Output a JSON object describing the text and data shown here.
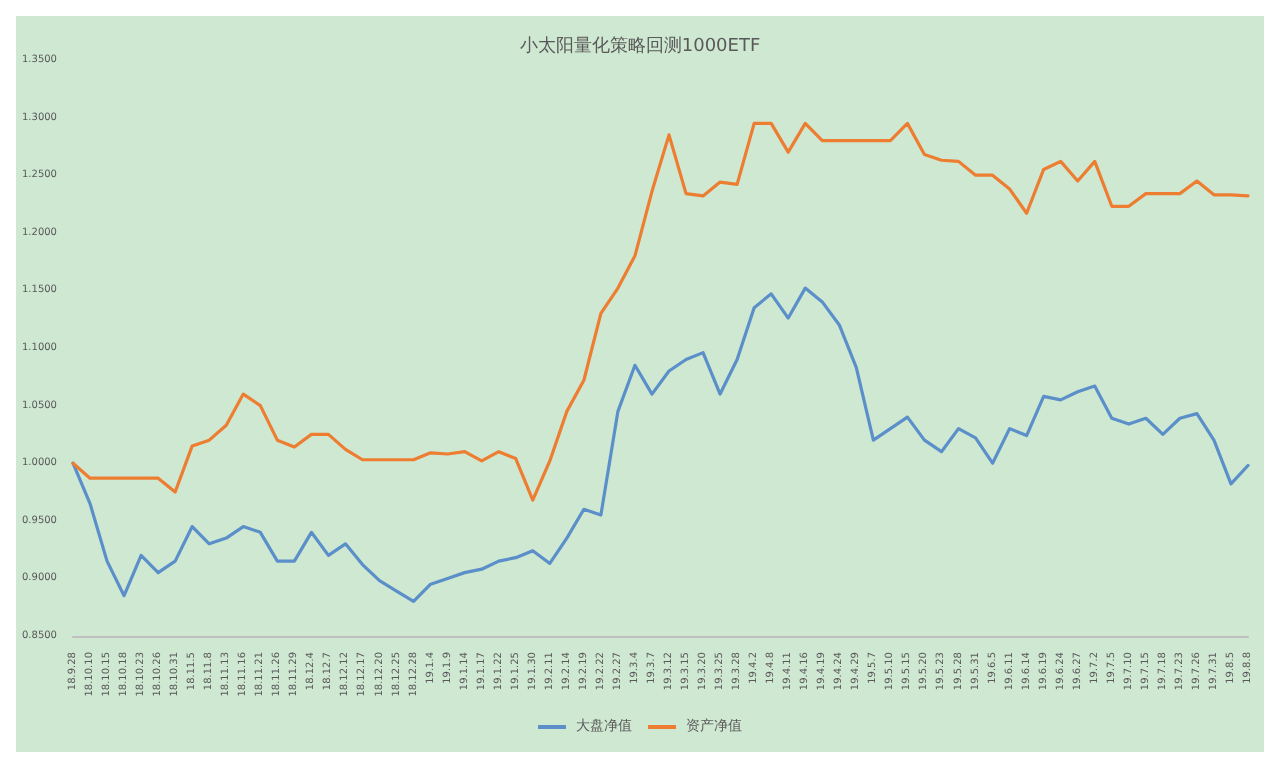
{
  "chart_data": {
    "type": "line",
    "title": "小太阳量化策略回测1000ETF",
    "categories": [
      "18.9.28",
      "18.10.10",
      "18.10.15",
      "18.10.18",
      "18.10.23",
      "18.10.26",
      "18.10.31",
      "18.11.5",
      "18.11.8",
      "18.11.13",
      "18.11.16",
      "18.11.21",
      "18.11.26",
      "18.11.29",
      "18.12.4",
      "18.12.7",
      "18.12.12",
      "18.12.17",
      "18.12.20",
      "18.12.25",
      "18.12.28",
      "19.1.4",
      "19.1.9",
      "19.1.14",
      "19.1.17",
      "19.1.22",
      "19.1.25",
      "19.1.30",
      "19.2.11",
      "19.2.14",
      "19.2.19",
      "19.2.22",
      "19.2.27",
      "19.3.4",
      "19.3.7",
      "19.3.12",
      "19.3.15",
      "19.3.20",
      "19.3.25",
      "19.3.28",
      "19.4.2",
      "19.4.8",
      "19.4.11",
      "19.4.16",
      "19.4.19",
      "19.4.24",
      "19.4.29",
      "19.5.7",
      "19.5.10",
      "19.5.15",
      "19.5.20",
      "19.5.23",
      "19.5.28",
      "19.5.31",
      "19.6.5",
      "19.6.11",
      "19.6.14",
      "19.6.19",
      "19.6.24",
      "19.6.27",
      "19.7.2",
      "19.7.5",
      "19.7.10",
      "19.7.15",
      "19.7.18",
      "19.7.23",
      "19.7.26",
      "19.7.31",
      "19.8.5",
      "19.8.8"
    ],
    "series": [
      {
        "name": "大盘净值",
        "color": "#5b8fc9",
        "values": [
          1.0,
          0.965,
          0.915,
          0.885,
          0.92,
          0.905,
          0.915,
          0.945,
          0.93,
          0.935,
          0.945,
          0.94,
          0.915,
          0.915,
          0.94,
          0.92,
          0.93,
          0.912,
          0.898,
          0.889,
          0.88,
          0.895,
          0.9,
          0.905,
          0.908,
          0.915,
          0.918,
          0.924,
          0.913,
          0.935,
          0.96,
          0.955,
          1.045,
          1.085,
          1.06,
          1.08,
          1.09,
          1.096,
          1.06,
          1.09,
          1.135,
          1.147,
          1.126,
          1.152,
          1.14,
          1.12,
          1.083,
          1.02,
          1.03,
          1.04,
          1.02,
          1.01,
          1.03,
          1.022,
          1.0,
          1.03,
          1.024,
          1.058,
          1.055,
          1.062,
          1.067,
          1.039,
          1.034,
          1.039,
          1.025,
          1.039,
          1.043,
          1.02,
          0.982,
          0.998
        ]
      },
      {
        "name": "资产净值",
        "color": "#ed7d31",
        "values": [
          1.0,
          0.987,
          0.987,
          0.987,
          0.987,
          0.987,
          0.975,
          1.015,
          1.02,
          1.033,
          1.06,
          1.05,
          1.02,
          1.014,
          1.025,
          1.025,
          1.012,
          1.003,
          1.003,
          1.003,
          1.003,
          1.009,
          1.008,
          1.01,
          1.002,
          1.01,
          1.004,
          0.968,
          1.002,
          1.045,
          1.072,
          1.13,
          1.152,
          1.18,
          1.236,
          1.285,
          1.234,
          1.232,
          1.244,
          1.242,
          1.295,
          1.295,
          1.27,
          1.295,
          1.28,
          1.28,
          1.28,
          1.28,
          1.28,
          1.295,
          1.268,
          1.263,
          1.262,
          1.25,
          1.25,
          1.238,
          1.217,
          1.255,
          1.262,
          1.245,
          1.262,
          1.223,
          1.223,
          1.234,
          1.234,
          1.234,
          1.245,
          1.233,
          1.233,
          1.232
        ]
      }
    ],
    "ylim": [
      0.85,
      1.35
    ],
    "yticks": [
      {
        "value": 0.85,
        "label": "0.8500"
      },
      {
        "value": 0.9,
        "label": "0.9000"
      },
      {
        "value": 0.95,
        "label": "0.9500"
      },
      {
        "value": 1.0,
        "label": "1.0000"
      },
      {
        "value": 1.05,
        "label": "1.0500"
      },
      {
        "value": 1.1,
        "label": "1.1000"
      },
      {
        "value": 1.15,
        "label": "1.1500"
      },
      {
        "value": 1.2,
        "label": "1.2000"
      },
      {
        "value": 1.25,
        "label": "1.2500"
      },
      {
        "value": 1.3,
        "label": "1.3000"
      },
      {
        "value": 1.35,
        "label": "1.3500"
      }
    ],
    "grid": false,
    "legend": "bottom",
    "marker": "none",
    "line_style": "solid"
  }
}
